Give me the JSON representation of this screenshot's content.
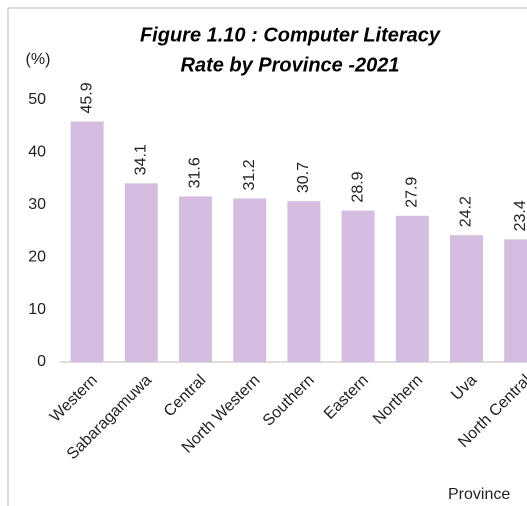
{
  "chart_data": {
    "type": "bar",
    "title_lines": [
      "Figure 1.10 : Computer Literacy",
      "Rate by Province -2021"
    ],
    "y_label": "(%)",
    "x_label": "Province",
    "categories": [
      "Western",
      "Sabaragamuwa",
      "Central",
      "North Western",
      "Southern",
      "Eastern",
      "Northern",
      "Uva",
      "North Central"
    ],
    "values": [
      45.9,
      34.1,
      31.6,
      31.2,
      30.7,
      28.9,
      27.9,
      24.2,
      23.4
    ],
    "color": "#d5bde0",
    "ylim": [
      0,
      50
    ],
    "yticks": [
      0,
      10,
      20,
      30,
      40,
      50
    ],
    "grid": false
  }
}
